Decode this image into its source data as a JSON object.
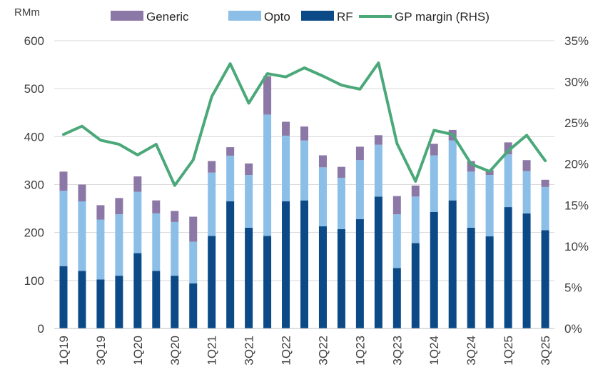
{
  "chart_data": {
    "type": "bar",
    "stacked": true,
    "title": "",
    "ylabel": "RMm",
    "ylim": [
      0,
      600
    ],
    "yticks": [
      0,
      100,
      200,
      300,
      400,
      500,
      600
    ],
    "y2lim": [
      0,
      35
    ],
    "y2ticks": [
      "0%",
      "5%",
      "10%",
      "15%",
      "20%",
      "25%",
      "30%",
      "35%"
    ],
    "legend_position": "top",
    "categories": [
      "1Q19",
      "2Q19",
      "3Q19",
      "4Q19",
      "1Q20",
      "2Q20",
      "3Q20",
      "4Q20",
      "1Q21",
      "2Q21",
      "3Q21",
      "4Q21",
      "1Q22",
      "2Q22",
      "3Q22",
      "4Q22",
      "1Q23",
      "2Q23",
      "3Q23",
      "4Q23",
      "1Q24",
      "2Q24",
      "3Q24",
      "4Q24",
      "1Q25",
      "2Q25",
      "3Q25"
    ],
    "xtick_labels": [
      "1Q19",
      "",
      "3Q19",
      "",
      "1Q20",
      "",
      "3Q20",
      "",
      "1Q21",
      "",
      "3Q21",
      "",
      "1Q22",
      "",
      "3Q22",
      "",
      "1Q23",
      "",
      "3Q23",
      "",
      "1Q24",
      "",
      "3Q24",
      "",
      "1Q25",
      "",
      "3Q25"
    ],
    "series": [
      {
        "name": "RF",
        "kind": "bar",
        "color": "#0b4a87",
        "values": [
          130,
          120,
          102,
          110,
          157,
          120,
          110,
          94,
          193,
          265,
          210,
          193,
          265,
          267,
          213,
          207,
          228,
          275,
          126,
          178,
          243,
          267,
          210,
          192,
          253,
          240,
          205
        ]
      },
      {
        "name": "Opto",
        "kind": "bar",
        "color": "#8bbfe8",
        "values": [
          157,
          145,
          125,
          128,
          128,
          120,
          112,
          87,
          132,
          95,
          110,
          253,
          137,
          125,
          123,
          107,
          123,
          108,
          112,
          97,
          118,
          125,
          117,
          128,
          110,
          88,
          90
        ]
      },
      {
        "name": "Generic",
        "kind": "bar",
        "color": "#8c78a6",
        "values": [
          40,
          35,
          30,
          34,
          32,
          27,
          23,
          52,
          24,
          18,
          24,
          80,
          29,
          29,
          25,
          23,
          28,
          20,
          38,
          23,
          24,
          22,
          22,
          10,
          25,
          23,
          15
        ]
      },
      {
        "name": "GP margin (RHS)",
        "kind": "line",
        "axis": "right",
        "color": "#4aa879",
        "unit": "%",
        "values": [
          23.6,
          24.6,
          22.9,
          22.4,
          21.1,
          22.4,
          17.4,
          20.5,
          28.2,
          32.2,
          27.4,
          31.0,
          30.6,
          31.7,
          30.7,
          29.6,
          29.1,
          32.3,
          22.5,
          17.9,
          24.1,
          23.6,
          20.0,
          19.1,
          21.6,
          23.5,
          20.4
        ]
      }
    ],
    "legend": [
      {
        "label": "Generic",
        "color": "#8c78a6",
        "kind": "bar"
      },
      {
        "label": "Opto",
        "color": "#8bbfe8",
        "kind": "bar"
      },
      {
        "label": "RF",
        "color": "#0b4a87",
        "kind": "bar"
      },
      {
        "label": "GP margin (RHS)",
        "color": "#4aa879",
        "kind": "line"
      }
    ],
    "colors": {
      "axis": "#bfbfbf",
      "text": "#404040"
    }
  }
}
